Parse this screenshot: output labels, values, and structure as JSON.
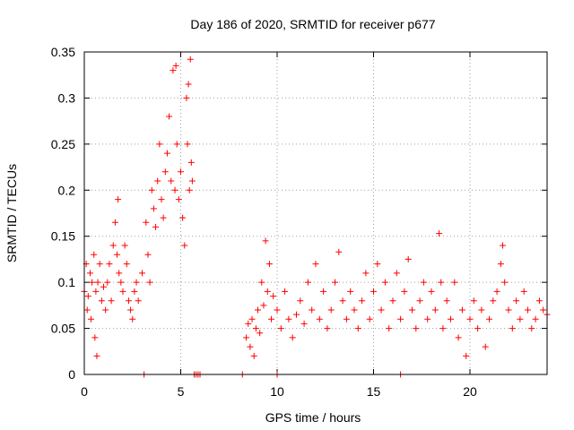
{
  "chart_data": {
    "type": "scatter",
    "title": "Day 186 of 2020, SRMTID for receiver p677",
    "xlabel": "GPS time / hours",
    "ylabel": "SRMTID / TECUs",
    "xlim": [
      0,
      24
    ],
    "ylim": [
      0,
      0.35
    ],
    "x_ticks": [
      0,
      5,
      10,
      15,
      20
    ],
    "x_tick_labels": [
      "0",
      "5",
      "10",
      "15",
      "20"
    ],
    "y_ticks": [
      0,
      0.05,
      0.1,
      0.15,
      0.2,
      0.25,
      0.3,
      0.35
    ],
    "y_tick_labels": [
      "0",
      "0.05",
      "0.1",
      "0.15",
      "0.2",
      "0.25",
      "0.3",
      "0.35"
    ],
    "grid": true,
    "marker": "+",
    "color": "#ff0000",
    "series": [
      {
        "name": "SRMTID",
        "points": [
          [
            0.0,
            0.09
          ],
          [
            0.1,
            0.12
          ],
          [
            0.15,
            0.07
          ],
          [
            0.2,
            0.085
          ],
          [
            0.3,
            0.11
          ],
          [
            0.35,
            0.06
          ],
          [
            0.4,
            0.1
          ],
          [
            0.5,
            0.13
          ],
          [
            0.55,
            0.04
          ],
          [
            0.6,
            0.09
          ],
          [
            0.65,
            0.02
          ],
          [
            0.7,
            0.1
          ],
          [
            0.8,
            0.12
          ],
          [
            0.9,
            0.08
          ],
          [
            1.0,
            0.095
          ],
          [
            1.1,
            0.07
          ],
          [
            1.2,
            0.1
          ],
          [
            1.3,
            0.12
          ],
          [
            1.4,
            0.08
          ],
          [
            1.5,
            0.14
          ],
          [
            1.6,
            0.165
          ],
          [
            1.7,
            0.13
          ],
          [
            1.75,
            0.19
          ],
          [
            1.8,
            0.11
          ],
          [
            1.9,
            0.1
          ],
          [
            2.0,
            0.09
          ],
          [
            2.1,
            0.14
          ],
          [
            2.2,
            0.12
          ],
          [
            2.3,
            0.08
          ],
          [
            2.4,
            0.07
          ],
          [
            2.5,
            0.06
          ],
          [
            2.6,
            0.09
          ],
          [
            2.7,
            0.1
          ],
          [
            2.8,
            0.08
          ],
          [
            3.0,
            0.11
          ],
          [
            3.2,
            0.165
          ],
          [
            3.3,
            0.13
          ],
          [
            3.4,
            0.1
          ],
          [
            3.5,
            0.2
          ],
          [
            3.6,
            0.18
          ],
          [
            3.7,
            0.16
          ],
          [
            3.8,
            0.21
          ],
          [
            3.9,
            0.25
          ],
          [
            4.0,
            0.19
          ],
          [
            4.1,
            0.17
          ],
          [
            4.2,
            0.22
          ],
          [
            4.3,
            0.24
          ],
          [
            4.4,
            0.28
          ],
          [
            4.5,
            0.21
          ],
          [
            4.6,
            0.33
          ],
          [
            4.7,
            0.2
          ],
          [
            4.75,
            0.335
          ],
          [
            4.8,
            0.25
          ],
          [
            4.9,
            0.19
          ],
          [
            5.0,
            0.22
          ],
          [
            5.1,
            0.17
          ],
          [
            5.2,
            0.14
          ],
          [
            5.3,
            0.3
          ],
          [
            5.35,
            0.25
          ],
          [
            5.4,
            0.315
          ],
          [
            5.45,
            0.2
          ],
          [
            5.5,
            0.342
          ],
          [
            5.55,
            0.23
          ],
          [
            5.6,
            0.21
          ],
          [
            8.4,
            0.04
          ],
          [
            8.5,
            0.055
          ],
          [
            8.6,
            0.03
          ],
          [
            8.7,
            0.06
          ],
          [
            8.8,
            0.02
          ],
          [
            8.9,
            0.05
          ],
          [
            9.0,
            0.07
          ],
          [
            9.1,
            0.045
          ],
          [
            9.2,
            0.1
          ],
          [
            9.3,
            0.075
          ],
          [
            9.4,
            0.145
          ],
          [
            9.5,
            0.09
          ],
          [
            9.6,
            0.12
          ],
          [
            9.7,
            0.06
          ],
          [
            9.8,
            0.085
          ],
          [
            10.0,
            0.07
          ],
          [
            10.2,
            0.05
          ],
          [
            10.4,
            0.09
          ],
          [
            10.6,
            0.06
          ],
          [
            10.8,
            0.04
          ],
          [
            11.0,
            0.065
          ],
          [
            11.2,
            0.08
          ],
          [
            11.4,
            0.055
          ],
          [
            11.6,
            0.1
          ],
          [
            11.8,
            0.07
          ],
          [
            12.0,
            0.12
          ],
          [
            12.2,
            0.06
          ],
          [
            12.4,
            0.09
          ],
          [
            12.6,
            0.05
          ],
          [
            12.8,
            0.07
          ],
          [
            13.0,
            0.1
          ],
          [
            13.2,
            0.133
          ],
          [
            13.4,
            0.08
          ],
          [
            13.6,
            0.06
          ],
          [
            13.8,
            0.09
          ],
          [
            14.0,
            0.07
          ],
          [
            14.2,
            0.05
          ],
          [
            14.4,
            0.08
          ],
          [
            14.6,
            0.11
          ],
          [
            14.8,
            0.06
          ],
          [
            15.0,
            0.09
          ],
          [
            15.2,
            0.12
          ],
          [
            15.4,
            0.07
          ],
          [
            15.6,
            0.1
          ],
          [
            15.8,
            0.05
          ],
          [
            16.0,
            0.08
          ],
          [
            16.2,
            0.11
          ],
          [
            16.4,
            0.06
          ],
          [
            16.6,
            0.09
          ],
          [
            16.8,
            0.125
          ],
          [
            17.0,
            0.07
          ],
          [
            17.2,
            0.05
          ],
          [
            17.4,
            0.08
          ],
          [
            17.6,
            0.1
          ],
          [
            17.8,
            0.06
          ],
          [
            18.0,
            0.09
          ],
          [
            18.2,
            0.07
          ],
          [
            18.4,
            0.153
          ],
          [
            18.5,
            0.1
          ],
          [
            18.6,
            0.05
          ],
          [
            18.8,
            0.08
          ],
          [
            19.0,
            0.06
          ],
          [
            19.2,
            0.1
          ],
          [
            19.4,
            0.04
          ],
          [
            19.6,
            0.07
          ],
          [
            19.8,
            0.02
          ],
          [
            20.0,
            0.06
          ],
          [
            20.2,
            0.08
          ],
          [
            20.4,
            0.05
          ],
          [
            20.6,
            0.07
          ],
          [
            20.8,
            0.03
          ],
          [
            21.0,
            0.06
          ],
          [
            21.2,
            0.08
          ],
          [
            21.4,
            0.09
          ],
          [
            21.6,
            0.12
          ],
          [
            21.7,
            0.14
          ],
          [
            21.8,
            0.1
          ],
          [
            22.0,
            0.07
          ],
          [
            22.2,
            0.05
          ],
          [
            22.4,
            0.08
          ],
          [
            22.6,
            0.06
          ],
          [
            22.8,
            0.09
          ],
          [
            23.0,
            0.07
          ],
          [
            23.2,
            0.05
          ],
          [
            23.4,
            0.06
          ],
          [
            23.6,
            0.08
          ],
          [
            23.8,
            0.07
          ],
          [
            24.0,
            0.065
          ],
          [
            3.1,
            0.0
          ],
          [
            5.7,
            0.0
          ],
          [
            5.8,
            0.0
          ],
          [
            5.9,
            0.0
          ],
          [
            6.0,
            0.0
          ],
          [
            8.2,
            0.0
          ],
          [
            10.0,
            0.0
          ],
          [
            16.4,
            0.0
          ]
        ]
      }
    ]
  }
}
